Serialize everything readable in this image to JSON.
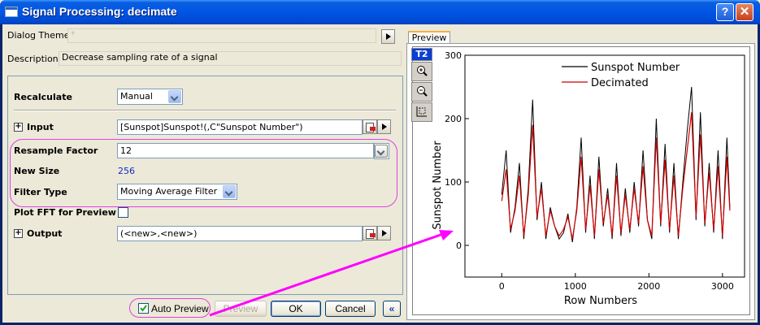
{
  "window": {
    "title": "Signal Processing: decimate",
    "help_glyph": "?",
    "close_glyph": "✕"
  },
  "theme": {
    "label": "Dialog Theme",
    "value": "*"
  },
  "description": {
    "label": "Description",
    "value": "Decrease sampling rate of a signal"
  },
  "params": {
    "recalculate": {
      "label": "Recalculate",
      "value": "Manual"
    },
    "input": {
      "label": "Input",
      "value": "[Sunspot]Sunspot!(,C\"Sunspot Number\")"
    },
    "resample_factor": {
      "label": "Resample Factor",
      "value": "12"
    },
    "new_size": {
      "label": "New Size",
      "value": "256"
    },
    "filter_type": {
      "label": "Filter Type",
      "value": "Moving Average Filter"
    },
    "plot_fft": {
      "label": "Plot FFT for Preview"
    },
    "output": {
      "label": "Output",
      "value": "(<new>,<new>)"
    }
  },
  "buttons": {
    "auto_preview": "Auto Preview",
    "preview": "Preview",
    "ok": "OK",
    "cancel": "Cancel",
    "collapse": "«"
  },
  "preview_tab": {
    "label": "Preview",
    "layer_badge": "T2"
  },
  "colors": {
    "original": "#000000",
    "decimated": "#cc0000",
    "accent_highlight": "#e040e0",
    "arrow": "#ff00ff"
  },
  "icons": [
    "zoom-in-icon",
    "zoom-out-icon",
    "rescale-icon"
  ],
  "chart_data": {
    "type": "line",
    "xlabel": "Row Numbers",
    "ylabel": "Sunspot Number",
    "xlim": [
      -500,
      3300
    ],
    "ylim": [
      -50,
      300
    ],
    "xticks": [
      0,
      1000,
      2000,
      3000
    ],
    "yticks": [
      0,
      100,
      200,
      300
    ],
    "legend_position": "top-right",
    "grid": false,
    "series": [
      {
        "name": "Sunspot Number",
        "color": "#000000",
        "x": [
          0,
          60,
          120,
          180,
          240,
          300,
          360,
          420,
          480,
          540,
          600,
          660,
          720,
          780,
          840,
          900,
          960,
          1020,
          1080,
          1140,
          1200,
          1260,
          1320,
          1380,
          1440,
          1500,
          1560,
          1620,
          1680,
          1740,
          1800,
          1860,
          1920,
          1980,
          2040,
          2100,
          2160,
          2220,
          2280,
          2340,
          2400,
          2460,
          2520,
          2580,
          2640,
          2700,
          2760,
          2820,
          2880,
          2940,
          3000,
          3060,
          3100
        ],
        "values": [
          80,
          150,
          20,
          60,
          130,
          10,
          90,
          230,
          40,
          100,
          10,
          60,
          30,
          10,
          20,
          50,
          5,
          60,
          170,
          20,
          110,
          10,
          140,
          30,
          90,
          10,
          130,
          15,
          90,
          20,
          100,
          30,
          150,
          40,
          10,
          200,
          30,
          160,
          20,
          130,
          10,
          100,
          180,
          250,
          40,
          210,
          30,
          130,
          20,
          150,
          10,
          170,
          60
        ]
      },
      {
        "name": "Decimated",
        "color": "#cc0000",
        "x": [
          0,
          60,
          120,
          180,
          240,
          300,
          360,
          420,
          480,
          540,
          600,
          660,
          720,
          780,
          840,
          900,
          960,
          1020,
          1080,
          1140,
          1200,
          1260,
          1320,
          1380,
          1440,
          1500,
          1560,
          1620,
          1680,
          1740,
          1800,
          1860,
          1920,
          1980,
          2040,
          2100,
          2160,
          2220,
          2280,
          2340,
          2400,
          2460,
          2520,
          2580,
          2640,
          2700,
          2760,
          2820,
          2880,
          2940,
          3000,
          3060,
          3100
        ],
        "values": [
          70,
          120,
          25,
          55,
          110,
          15,
          80,
          190,
          45,
          90,
          15,
          55,
          30,
          15,
          25,
          45,
          10,
          55,
          140,
          25,
          95,
          15,
          120,
          35,
          80,
          15,
          110,
          20,
          80,
          25,
          90,
          35,
          125,
          40,
          15,
          170,
          35,
          135,
          25,
          110,
          15,
          90,
          150,
          210,
          45,
          175,
          35,
          115,
          25,
          125,
          15,
          140,
          55
        ]
      }
    ]
  }
}
